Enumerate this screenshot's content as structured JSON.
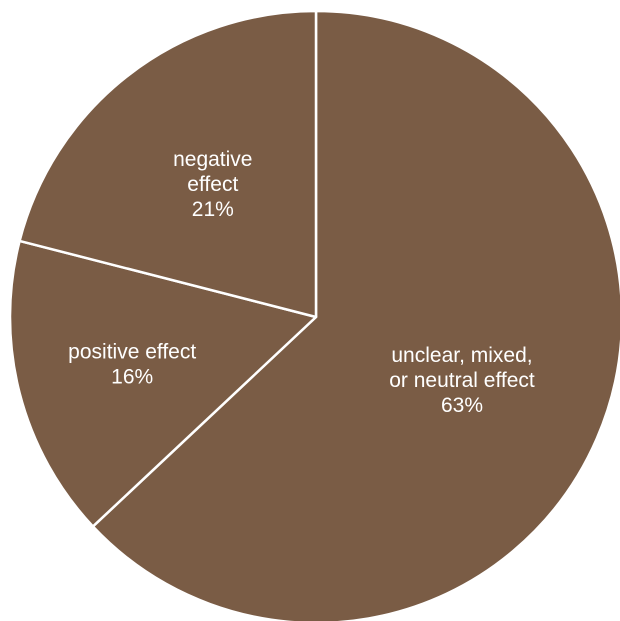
{
  "chart_data": {
    "type": "pie",
    "title": "",
    "slice_color": "#7a5c45",
    "slices": [
      {
        "label_lines": [
          "unclear, mixed,",
          "or neutral effect"
        ],
        "value_label": "63%",
        "value": 63
      },
      {
        "label_lines": [
          "positive effect"
        ],
        "value_label": "16%",
        "value": 16
      },
      {
        "label_lines": [
          "negative",
          "effect"
        ],
        "value_label": "21%",
        "value": 21
      }
    ]
  }
}
